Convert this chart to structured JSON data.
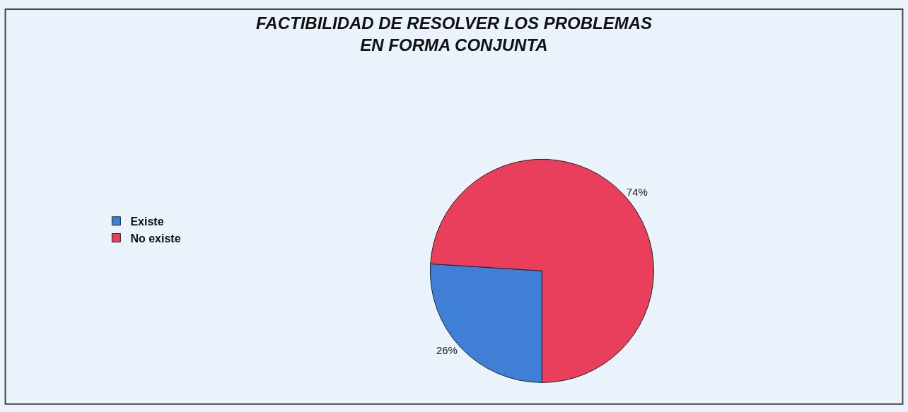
{
  "chart_data": {
    "type": "pie",
    "title": "FACTIBILIDAD DE RESOLVER LOS PROBLEMAS\nEN FORMA CONJUNTA",
    "categories": [
      "Existe",
      "No existe"
    ],
    "values": [
      26,
      74
    ],
    "colors": [
      "#3f7fd6",
      "#ea3f5c"
    ],
    "value_labels": [
      "26%",
      "74%"
    ],
    "legend": "left"
  }
}
